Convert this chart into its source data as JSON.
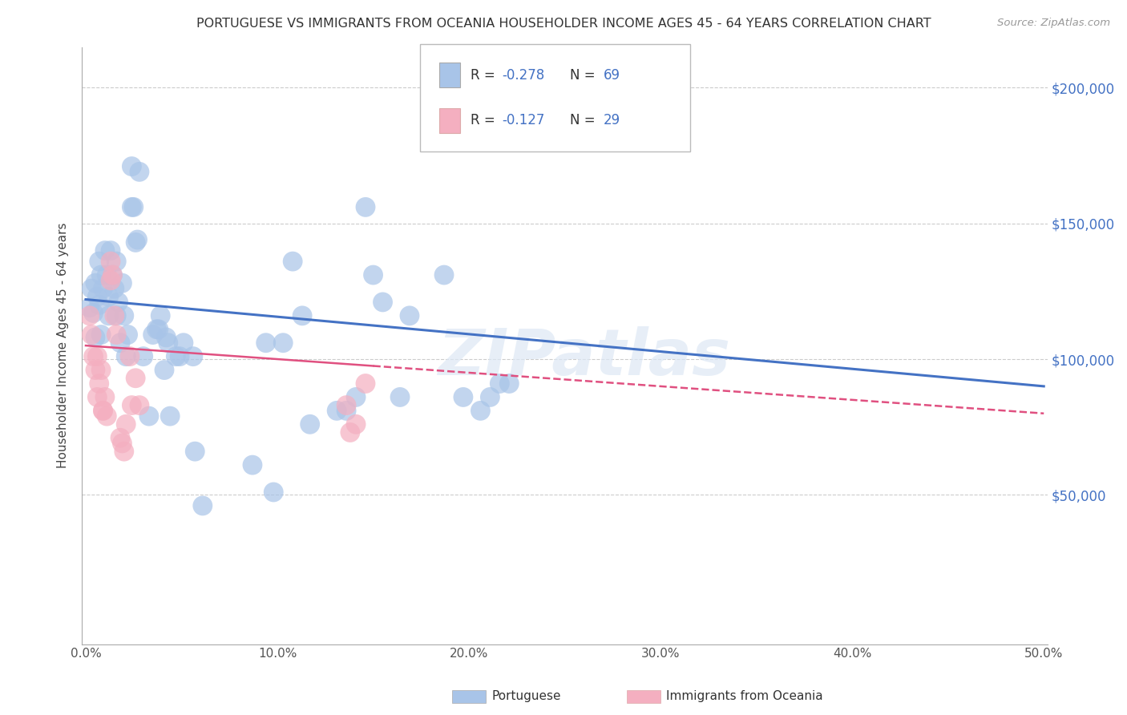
{
  "title": "PORTUGUESE VS IMMIGRANTS FROM OCEANIA HOUSEHOLDER INCOME AGES 45 - 64 YEARS CORRELATION CHART",
  "source": "Source: ZipAtlas.com",
  "ylabel": "Householder Income Ages 45 - 64 years",
  "xlabel_ticks": [
    "0.0%",
    "",
    "",
    "",
    "",
    "10.0%",
    "",
    "",
    "",
    "",
    "20.0%",
    "",
    "",
    "",
    "",
    "30.0%",
    "",
    "",
    "",
    "",
    "40.0%",
    "",
    "",
    "",
    "",
    "50.0%"
  ],
  "xlabel_vals": [
    0.0,
    0.02,
    0.04,
    0.06,
    0.08,
    0.1,
    0.12,
    0.14,
    0.16,
    0.18,
    0.2,
    0.22,
    0.24,
    0.26,
    0.28,
    0.3,
    0.32,
    0.34,
    0.36,
    0.38,
    0.4,
    0.42,
    0.44,
    0.46,
    0.48,
    0.5
  ],
  "ytick_labels": [
    "$50,000",
    "$100,000",
    "$150,000",
    "$200,000"
  ],
  "ytick_vals": [
    50000,
    100000,
    150000,
    200000
  ],
  "grid_vals": [
    50000,
    100000,
    150000,
    200000
  ],
  "ylim": [
    -5000,
    215000
  ],
  "xlim": [
    -0.002,
    0.502
  ],
  "legend_label1": "Portuguese",
  "legend_label2": "Immigrants from Oceania",
  "r1": "-0.278",
  "n1": "69",
  "r2": "-0.127",
  "n2": "29",
  "color1": "#a8c4e8",
  "color2": "#f4afc0",
  "line_color1": "#4472c4",
  "line_color2": "#e05080",
  "watermark": "ZIPatlas",
  "blue_scatter": [
    [
      0.002,
      119000
    ],
    [
      0.003,
      126000
    ],
    [
      0.004,
      117000
    ],
    [
      0.005,
      128000
    ],
    [
      0.005,
      108000
    ],
    [
      0.006,
      123000
    ],
    [
      0.007,
      120000
    ],
    [
      0.007,
      136000
    ],
    [
      0.008,
      109000
    ],
    [
      0.008,
      131000
    ],
    [
      0.009,
      126000
    ],
    [
      0.01,
      140000
    ],
    [
      0.011,
      131000
    ],
    [
      0.012,
      123000
    ],
    [
      0.012,
      116000
    ],
    [
      0.013,
      140000
    ],
    [
      0.014,
      131000
    ],
    [
      0.015,
      126000
    ],
    [
      0.016,
      136000
    ],
    [
      0.016,
      116000
    ],
    [
      0.017,
      121000
    ],
    [
      0.018,
      106000
    ],
    [
      0.019,
      128000
    ],
    [
      0.02,
      116000
    ],
    [
      0.021,
      101000
    ],
    [
      0.022,
      109000
    ],
    [
      0.024,
      171000
    ],
    [
      0.024,
      156000
    ],
    [
      0.025,
      156000
    ],
    [
      0.026,
      143000
    ],
    [
      0.027,
      144000
    ],
    [
      0.028,
      169000
    ],
    [
      0.03,
      101000
    ],
    [
      0.033,
      79000
    ],
    [
      0.035,
      109000
    ],
    [
      0.037,
      111000
    ],
    [
      0.038,
      111000
    ],
    [
      0.039,
      116000
    ],
    [
      0.041,
      96000
    ],
    [
      0.042,
      108000
    ],
    [
      0.043,
      106000
    ],
    [
      0.044,
      79000
    ],
    [
      0.047,
      101000
    ],
    [
      0.049,
      101000
    ],
    [
      0.051,
      106000
    ],
    [
      0.056,
      101000
    ],
    [
      0.057,
      66000
    ],
    [
      0.061,
      46000
    ],
    [
      0.087,
      61000
    ],
    [
      0.094,
      106000
    ],
    [
      0.098,
      51000
    ],
    [
      0.103,
      106000
    ],
    [
      0.108,
      136000
    ],
    [
      0.113,
      116000
    ],
    [
      0.117,
      76000
    ],
    [
      0.131,
      81000
    ],
    [
      0.136,
      81000
    ],
    [
      0.141,
      86000
    ],
    [
      0.146,
      156000
    ],
    [
      0.15,
      131000
    ],
    [
      0.155,
      121000
    ],
    [
      0.164,
      86000
    ],
    [
      0.169,
      116000
    ],
    [
      0.187,
      131000
    ],
    [
      0.197,
      86000
    ],
    [
      0.206,
      81000
    ],
    [
      0.211,
      86000
    ],
    [
      0.216,
      91000
    ],
    [
      0.221,
      91000
    ]
  ],
  "pink_scatter": [
    [
      0.002,
      116000
    ],
    [
      0.003,
      109000
    ],
    [
      0.004,
      101000
    ],
    [
      0.005,
      96000
    ],
    [
      0.006,
      101000
    ],
    [
      0.006,
      86000
    ],
    [
      0.007,
      91000
    ],
    [
      0.008,
      96000
    ],
    [
      0.009,
      81000
    ],
    [
      0.009,
      81000
    ],
    [
      0.01,
      86000
    ],
    [
      0.011,
      79000
    ],
    [
      0.013,
      136000
    ],
    [
      0.013,
      129000
    ],
    [
      0.014,
      131000
    ],
    [
      0.015,
      116000
    ],
    [
      0.016,
      109000
    ],
    [
      0.018,
      71000
    ],
    [
      0.019,
      69000
    ],
    [
      0.02,
      66000
    ],
    [
      0.021,
      76000
    ],
    [
      0.023,
      101000
    ],
    [
      0.024,
      83000
    ],
    [
      0.026,
      93000
    ],
    [
      0.028,
      83000
    ],
    [
      0.136,
      83000
    ],
    [
      0.138,
      73000
    ],
    [
      0.141,
      76000
    ],
    [
      0.146,
      91000
    ]
  ],
  "trendline1_x": [
    0.0,
    0.5
  ],
  "trendline1_y": [
    122000,
    90000
  ],
  "trendline2_x": [
    0.0,
    0.5
  ],
  "trendline2_y": [
    105000,
    80000
  ],
  "trendline2_solid_end": 0.15,
  "trendline2_dashed_start": 0.15
}
